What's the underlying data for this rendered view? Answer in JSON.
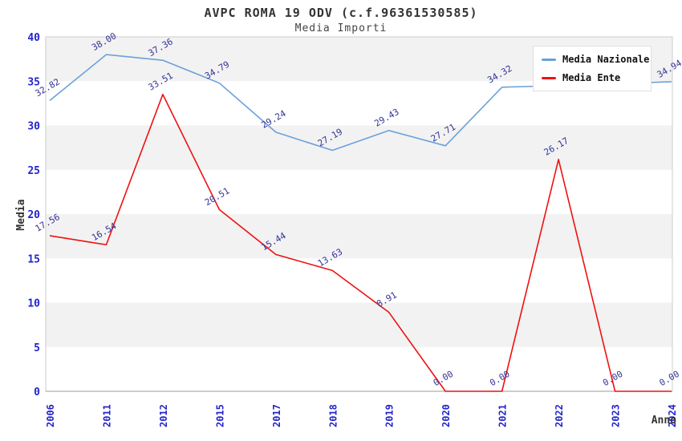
{
  "chart_data": {
    "type": "line",
    "title": "AVPC ROMA 19 ODV (c.f.96361530585)",
    "subtitle": "Media Importi",
    "xlabel": "Anno",
    "ylabel": "Media",
    "ylim": [
      0,
      40
    ],
    "yticks": [
      0,
      5,
      10,
      15,
      20,
      25,
      30,
      35,
      40
    ],
    "grid": "alternating-horizontal-bands",
    "legend_position": "top-right",
    "categories": [
      "2006",
      "2011",
      "2012",
      "2015",
      "2017",
      "2018",
      "2019",
      "2020",
      "2021",
      "2022",
      "2023",
      "2024"
    ],
    "series": [
      {
        "name": "Media Nazionale",
        "color": "#6ba1d9",
        "values": [
          32.82,
          38.0,
          37.36,
          34.79,
          29.24,
          27.19,
          29.43,
          27.71,
          34.32,
          34.5,
          34.72,
          34.94
        ],
        "labels": [
          "32.82",
          "38.00",
          "37.36",
          "34.79",
          "29.24",
          "27.19",
          "29.43",
          "27.71",
          "34.32",
          "",
          "",
          "34.94"
        ]
      },
      {
        "name": "Media Ente",
        "color": "#ee1111",
        "values": [
          17.56,
          16.54,
          33.51,
          20.51,
          15.44,
          13.63,
          8.91,
          0.0,
          0.0,
          26.17,
          0.0,
          0.0
        ],
        "labels": [
          "17.56",
          "16.54",
          "33.51",
          "20.51",
          "15.44",
          "13.63",
          "8.91",
          "0.00",
          "0.00",
          "26.17",
          "0.00",
          "0.00"
        ]
      }
    ],
    "colors": {
      "band_gray": "#f2f2f2",
      "plot_border": "#cccccc",
      "axis_bottom": "#999999",
      "tick_label": "#2424cc",
      "data_label": "#333399",
      "axis_title": "#333333"
    }
  }
}
